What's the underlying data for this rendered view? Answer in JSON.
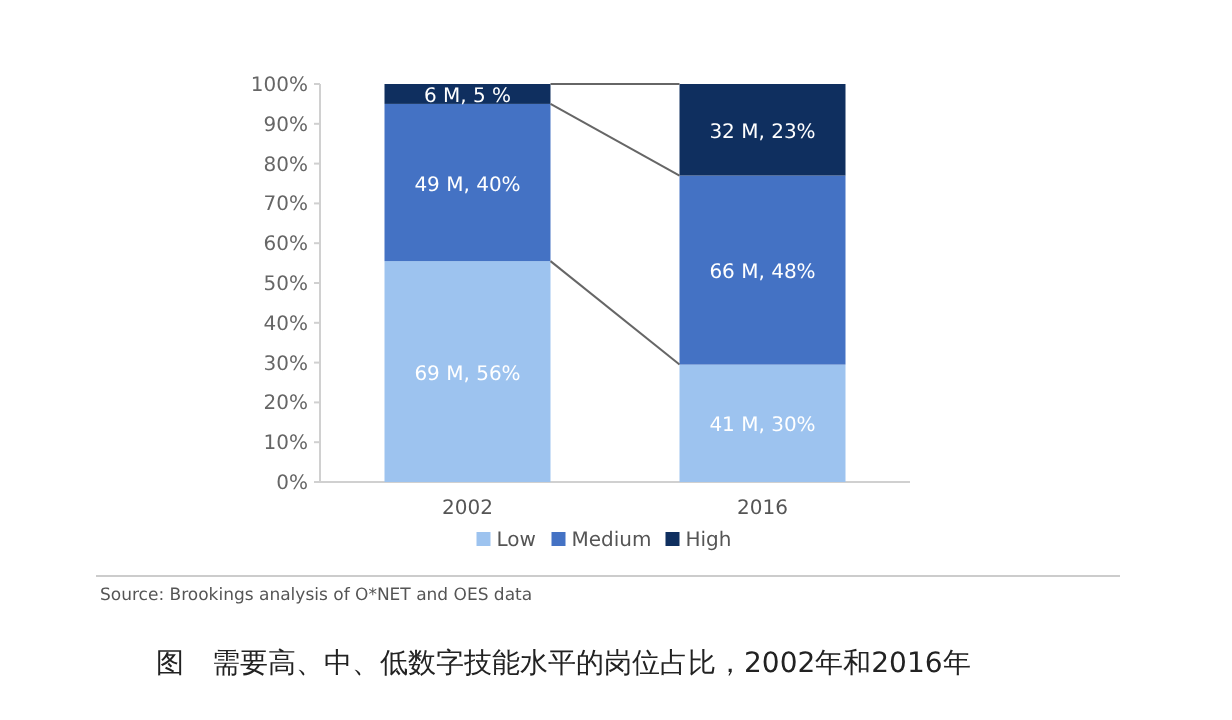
{
  "chart_data": {
    "type": "bar",
    "stacked": true,
    "categories": [
      "2002",
      "2016"
    ],
    "series": [
      {
        "name": "Low",
        "color": "#9dc3ef",
        "values": [
          55.5,
          29.5
        ],
        "value_labels": [
          "69 M, 56%",
          "41 M, 30%"
        ]
      },
      {
        "name": "Medium",
        "color": "#4472c4",
        "values": [
          39.5,
          47.5
        ],
        "value_labels": [
          "49 M, 40%",
          "66 M, 48%"
        ]
      },
      {
        "name": "High",
        "color": "#0f2f5f",
        "values": [
          5,
          23
        ],
        "value_labels": [
          "6 M, 5 %",
          "32 M, 23%"
        ]
      }
    ],
    "ylim": [
      0,
      100
    ],
    "yticks": [
      {
        "value": 0,
        "label": "0%"
      },
      {
        "value": 10,
        "label": "10%"
      },
      {
        "value": 20,
        "label": "20%"
      },
      {
        "value": 30,
        "label": "30%"
      },
      {
        "value": 40,
        "label": "40%"
      },
      {
        "value": 50,
        "label": "50%"
      },
      {
        "value": 60,
        "label": "60%"
      },
      {
        "value": 70,
        "label": "70%"
      },
      {
        "value": 80,
        "label": "80%"
      },
      {
        "value": 90,
        "label": "90%"
      },
      {
        "value": 100,
        "label": "100%"
      }
    ],
    "legend": "bottom",
    "annotations": [
      "Source: Brookings analysis of O*NET and OES data",
      "图　需要高、中、低数字技能水平的岗位占比，2002年和2016年"
    ]
  }
}
